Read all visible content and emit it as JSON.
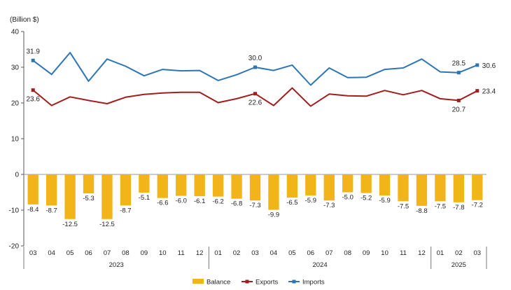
{
  "chart_data": {
    "type": "bar+line",
    "unit_label": "(Billion $)",
    "ylim": [
      -20,
      40
    ],
    "yticks": [
      -20,
      -10,
      0,
      10,
      20,
      30,
      40
    ],
    "grid": false,
    "legend_position": "bottom-center",
    "categories": [
      "03",
      "04",
      "05",
      "06",
      "07",
      "08",
      "09",
      "10",
      "11",
      "12",
      "01",
      "02",
      "03",
      "04",
      "05",
      "06",
      "07",
      "08",
      "09",
      "10",
      "11",
      "12",
      "01",
      "02",
      "03"
    ],
    "year_groups": [
      {
        "label": "2023",
        "start": 0,
        "end": 9
      },
      {
        "label": "2024",
        "start": 10,
        "end": 21
      },
      {
        "label": "2025",
        "start": 22,
        "end": 24
      }
    ],
    "series": [
      {
        "name": "Balance",
        "kind": "bar",
        "color": "#F2B519",
        "values": [
          -8.4,
          -8.7,
          -12.5,
          -5.3,
          -12.5,
          -8.7,
          -5.1,
          -6.6,
          -6.0,
          -6.1,
          -6.2,
          -6.8,
          -7.3,
          -9.9,
          -6.5,
          -5.9,
          -7.3,
          -5.0,
          -5.2,
          -5.9,
          -7.5,
          -8.8,
          -7.5,
          -7.8,
          -7.2
        ],
        "value_labels": [
          "-8.4",
          "-8.7",
          "-12.5",
          "-5.3",
          "-12.5",
          "-8.7",
          "-5.1",
          "-6.6",
          "-6.0",
          "-6.1",
          "-6.2",
          "-6.8",
          "-7.3",
          "-9.9",
          "-6.5",
          "-5.9",
          "-7.3",
          "-5.0",
          "-5.2",
          "-5.9",
          "-7.5",
          "-8.8",
          "-7.5",
          "-7.8",
          "-7.2"
        ]
      },
      {
        "name": "Exports",
        "kind": "line",
        "color": "#A31D1D",
        "values": [
          23.6,
          19.3,
          21.7,
          20.7,
          19.8,
          21.6,
          22.4,
          22.8,
          23.0,
          23.0,
          20.1,
          21.2,
          22.6,
          19.3,
          24.2,
          19.1,
          22.5,
          22.0,
          21.9,
          23.5,
          22.3,
          23.5,
          21.2,
          20.7,
          23.4
        ],
        "markers": [
          {
            "index": 0,
            "label": "23.6"
          },
          {
            "index": 12,
            "label": "22.6"
          },
          {
            "index": 23,
            "label": "20.7"
          },
          {
            "index": 24,
            "label": "23.4"
          }
        ]
      },
      {
        "name": "Imports",
        "kind": "line",
        "color": "#2E75B6",
        "values": [
          31.9,
          28.0,
          34.1,
          26.1,
          32.3,
          30.3,
          27.6,
          29.4,
          29.0,
          29.1,
          26.3,
          27.9,
          30.0,
          29.1,
          30.6,
          25.0,
          29.8,
          27.1,
          27.2,
          29.4,
          29.8,
          32.3,
          28.7,
          28.5,
          30.6
        ],
        "markers": [
          {
            "index": 0,
            "label": "31.9"
          },
          {
            "index": 12,
            "label": "30.0"
          },
          {
            "index": 23,
            "label": "28.5"
          },
          {
            "index": 24,
            "label": "30.6"
          }
        ]
      }
    ],
    "legend": [
      "Balance",
      "Exports",
      "Imports"
    ]
  }
}
